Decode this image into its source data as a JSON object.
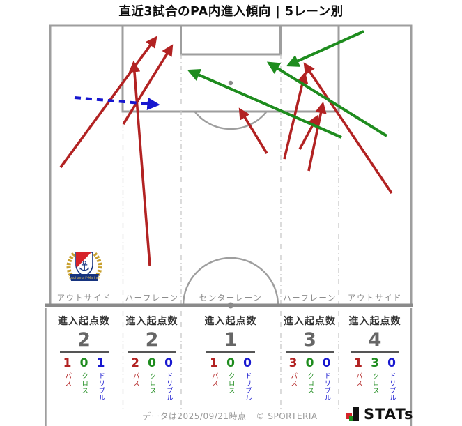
{
  "title": "直近3試合のPA内進入傾向 | 5レーン別",
  "colors": {
    "pass": "#b22222",
    "cross": "#1e8c1e",
    "dribble": "#1717cf",
    "pitch_line": "#9e9e9e",
    "lane_line": "#c8c8c8",
    "heavy_line": "#8a8a8a",
    "muted_text": "#8c8c8c",
    "number_text": "#666666",
    "header_text": "#333333",
    "footer_text": "#9a9a9a",
    "brand_black": "#111111"
  },
  "stats": {
    "header": "進入起点数"
  },
  "metric_labels": {
    "pass": "パス",
    "cross": "クロス",
    "dribble": "ドリブル"
  },
  "footer": {
    "note": "データは2025/09/21時点",
    "copyright": "© SPORTERIA",
    "brand": "STATs"
  },
  "logo": {
    "team": "Yokohama F-Marinos"
  },
  "chart_data": {
    "type": "scatter",
    "subtype": "pitch-entry-arrow-map",
    "title": "直近3試合のPA内進入傾向 | 5レーン別",
    "coordinate_system": "pixels, 663x611, attacking toward top goal",
    "legend": {
      "pass": "パス (red solid)",
      "cross": "クロス (green solid)",
      "dribble": "ドリブル (blue dashed)"
    },
    "arrows": [
      {
        "kind": "pass",
        "from": [
          87,
          240
        ],
        "to": [
          223,
          55
        ]
      },
      {
        "kind": "pass",
        "from": [
          177,
          178
        ],
        "to": [
          246,
          67
        ]
      },
      {
        "kind": "pass",
        "from": [
          215,
          381
        ],
        "to": [
          192,
          91
        ]
      },
      {
        "kind": "pass",
        "from": [
          383,
          220
        ],
        "to": [
          345,
          158
        ]
      },
      {
        "kind": "pass",
        "from": [
          562,
          277
        ],
        "to": [
          438,
          93
        ]
      },
      {
        "kind": "pass",
        "from": [
          408,
          228
        ],
        "to": [
          437,
          107
        ]
      },
      {
        "kind": "pass",
        "from": [
          443,
          245
        ],
        "to": [
          463,
          150
        ]
      },
      {
        "kind": "pass",
        "from": [
          430,
          214
        ],
        "to": [
          455,
          168
        ]
      },
      {
        "kind": "cross",
        "from": [
          490,
          197
        ],
        "to": [
          273,
          102
        ]
      },
      {
        "kind": "cross",
        "from": [
          555,
          195
        ],
        "to": [
          387,
          91
        ]
      },
      {
        "kind": "cross",
        "from": [
          522,
          45
        ],
        "to": [
          415,
          93
        ]
      },
      {
        "kind": "dribble",
        "from": [
          107,
          140
        ],
        "to": [
          225,
          150
        ]
      }
    ],
    "lanes": [
      {
        "label": "アウトサイド",
        "origins": 2,
        "pass": 1,
        "cross": 0,
        "dribble": 1
      },
      {
        "label": "ハーフレーン",
        "origins": 2,
        "pass": 2,
        "cross": 0,
        "dribble": 0
      },
      {
        "label": "センターレーン",
        "origins": 1,
        "pass": 1,
        "cross": 0,
        "dribble": 0
      },
      {
        "label": "ハーフレーン",
        "origins": 3,
        "pass": 3,
        "cross": 0,
        "dribble": 0
      },
      {
        "label": "アウトサイド",
        "origins": 4,
        "pass": 1,
        "cross": 3,
        "dribble": 0
      }
    ]
  }
}
